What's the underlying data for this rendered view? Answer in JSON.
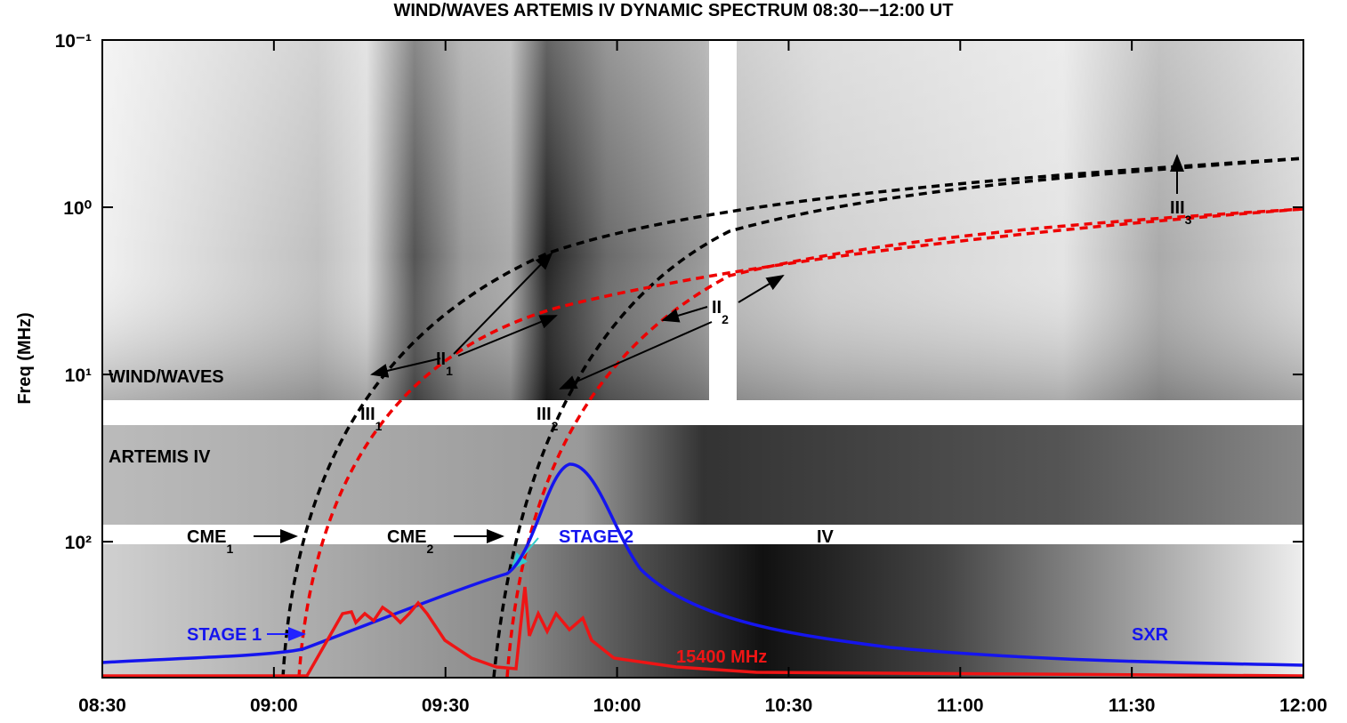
{
  "chart_data": {
    "type": "spectrogram",
    "title": "WIND/WAVES ARTEMIS IV DYNAMIC SPECTRUM 08:30−−12:00 UT",
    "y_label": "Freq (MHz)",
    "xticks": [
      "08:30",
      "09:00",
      "09:30",
      "10:00",
      "10:30",
      "11:00",
      "11:30",
      "12:00"
    ],
    "ylim": [
      0.1,
      650
    ],
    "yscale": "log",
    "yreverse": true,
    "yticks": [
      {
        "value": 0.1,
        "label": "10⁻¹"
      },
      {
        "value": 1,
        "label": "10⁰"
      },
      {
        "value": 10,
        "label": "10¹"
      },
      {
        "value": 100,
        "label": "10²"
      }
    ],
    "annotations": {
      "wind": "WIND/WAVES",
      "artemis": "ARTEMIS IV",
      "ii1": {
        "text": "II",
        "sub": "1"
      },
      "ii2": {
        "text": "II",
        "sub": "2"
      },
      "iii1": {
        "text": "III",
        "sub": "1"
      },
      "iii2": {
        "text": "III",
        "sub": "2"
      },
      "iii3": {
        "text": "III",
        "sub": "3"
      },
      "cme1": {
        "text": "CME",
        "sub": "1"
      },
      "cme2": {
        "text": "CME",
        "sub": "2"
      },
      "stage1": "STAGE 1",
      "stage2": "STAGE 2",
      "iv": "IV",
      "sxr": "SXR",
      "radio": "15400 MHz"
    }
  }
}
